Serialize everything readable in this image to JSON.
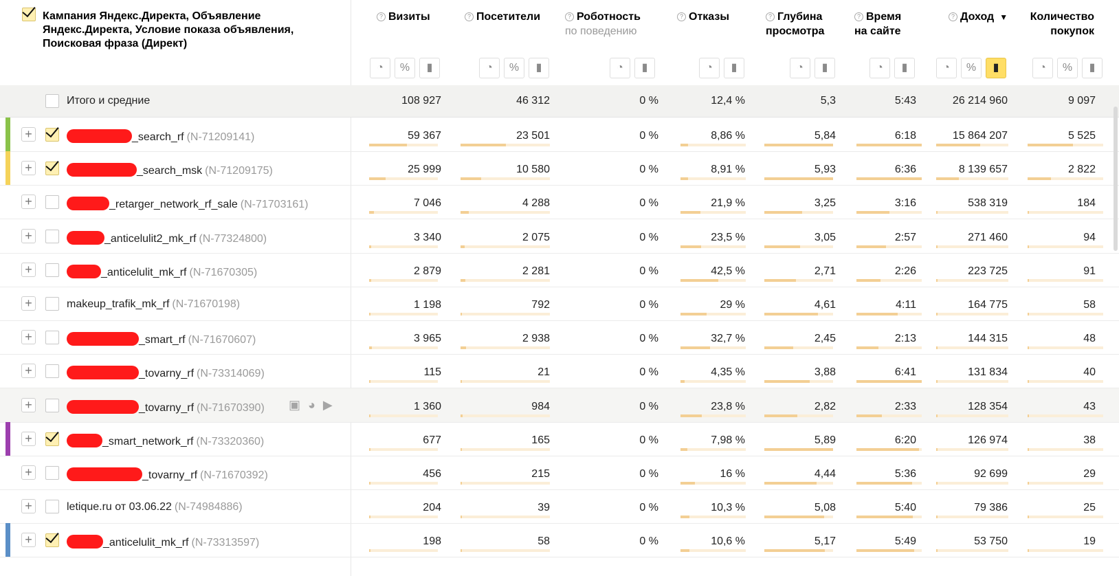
{
  "header": {
    "dimension_title": "Кампания Яндекс.Директа, Объявление Яндекс.Директа, Условие показа объявления, Поисковая фраза (Директ)",
    "metrics": [
      {
        "l1": "Визиты",
        "l2": "",
        "sub": ""
      },
      {
        "l1": "Посетители",
        "l2": "",
        "sub": ""
      },
      {
        "l1": "Роботность",
        "l2": "",
        "sub": "по поведению"
      },
      {
        "l1": "Отказы",
        "l2": "",
        "sub": ""
      },
      {
        "l1": "Глубина",
        "l2": "просмотра",
        "sub": ""
      },
      {
        "l1": "Время",
        "l2": "на сайте",
        "sub": ""
      },
      {
        "l1": "Доход",
        "l2": "",
        "sub": "",
        "sort": "▼"
      },
      {
        "l1": "Количество",
        "l2": "покупок",
        "sub": ""
      }
    ],
    "help_glyph": "?"
  },
  "icons": {
    "pie": "◔",
    "percent": "%",
    "bars": "▮",
    "plus": "+",
    "save": "▣",
    "chart": "◕",
    "play": "▶"
  },
  "colors": {
    "accent": "#ffde66",
    "bar_fill": "#f3cf94",
    "bar_track": "#fbeed8",
    "redaction": "#ff1a1a"
  },
  "total": {
    "label": "Итого и средние",
    "values": [
      "108 927",
      "46 312",
      "0 %",
      "12,4 %",
      "5,3",
      "5:43",
      "26 214 960",
      "9 097"
    ]
  },
  "rows": [
    {
      "label": "_search_rf",
      "code": "(N-71209141)",
      "checked": true,
      "stripe": "#8bc34a",
      "values": [
        "59 367",
        "23 501",
        "0 %",
        "8,86 %",
        "5,84",
        "6:18",
        "15 864 207",
        "5 525"
      ],
      "bars": [
        0.545,
        0.507,
        0,
        0.12,
        1,
        1,
        0.605,
        0.6
      ]
    },
    {
      "label": "_search_msk",
      "code": "(N-71209175)",
      "checked": true,
      "stripe": "#f5d35a",
      "values": [
        "25 999",
        "10 580",
        "0 %",
        "8,91 %",
        "5,93",
        "6:36",
        "8 139 657",
        "2 822"
      ],
      "bars": [
        0.24,
        0.23,
        0,
        0.12,
        1,
        1,
        0.31,
        0.31
      ]
    },
    {
      "label": "_retarger_network_rf_sale",
      "code": "(N-71703161)",
      "checked": false,
      "values": [
        "7 046",
        "4 288",
        "0 %",
        "21,9 %",
        "3,25",
        "3:16",
        "538 319",
        "184"
      ],
      "bars": [
        0.065,
        0.09,
        0,
        0.3,
        0.55,
        0.5,
        0.02,
        0.02
      ]
    },
    {
      "label": "_anticelulit2_mk_rf",
      "code": "(N-77324800)",
      "checked": false,
      "values": [
        "3 340",
        "2 075",
        "0 %",
        "23,5 %",
        "3,05",
        "2:57",
        "271 460",
        "94"
      ],
      "bars": [
        0.03,
        0.045,
        0,
        0.32,
        0.52,
        0.45,
        0.01,
        0.01
      ]
    },
    {
      "label": "_anticelulit_mk_rf",
      "code": "(N-71670305)",
      "checked": false,
      "values": [
        "2 879",
        "2 281",
        "0 %",
        "42,5 %",
        "2,71",
        "2:26",
        "223 725",
        "91"
      ],
      "bars": [
        0.026,
        0.05,
        0,
        0.58,
        0.46,
        0.37,
        0.01,
        0.01
      ]
    },
    {
      "label": "makeup_trafik_mk_rf",
      "code": "(N-71670198)",
      "checked": false,
      "plain": true,
      "values": [
        "1 198",
        "792",
        "0 %",
        "29 %",
        "4,61",
        "4:11",
        "164 775",
        "58"
      ],
      "bars": [
        0.011,
        0.017,
        0,
        0.4,
        0.78,
        0.63,
        0.006,
        0.006
      ]
    },
    {
      "label": "_smart_rf",
      "code": "(N-71670607)",
      "checked": false,
      "values": [
        "3 965",
        "2 938",
        "0 %",
        "32,7 %",
        "2,45",
        "2:13",
        "144 315",
        "48"
      ],
      "bars": [
        0.036,
        0.063,
        0,
        0.45,
        0.42,
        0.34,
        0.005,
        0.005
      ]
    },
    {
      "label": "_tovarny_rf",
      "code": "(N-73314069)",
      "checked": false,
      "values": [
        "115",
        "21",
        "0 %",
        "4,35 %",
        "3,88",
        "6:41",
        "131 834",
        "40"
      ],
      "bars": [
        0.001,
        0.001,
        0,
        0.06,
        0.66,
        1,
        0.005,
        0.004
      ]
    },
    {
      "label": "_tovarny_rf",
      "code": "(N-71670390)",
      "checked": false,
      "hover": true,
      "values": [
        "1 360",
        "984",
        "0 %",
        "23,8 %",
        "2,82",
        "2:33",
        "128 354",
        "43"
      ],
      "bars": [
        0.012,
        0.021,
        0,
        0.33,
        0.48,
        0.39,
        0.005,
        0.004
      ]
    },
    {
      "label": "_smart_network_rf",
      "code": "(N-73320360)",
      "checked": true,
      "stripe": "#9c3fae",
      "values": [
        "677",
        "165",
        "0 %",
        "7,98 %",
        "5,89",
        "6:20",
        "126 974",
        "38"
      ],
      "bars": [
        0.006,
        0.004,
        0,
        0.11,
        1,
        0.96,
        0.005,
        0.004
      ]
    },
    {
      "label": "_tovarny_rf",
      "code": "(N-71670392)",
      "checked": false,
      "values": [
        "456",
        "215",
        "0 %",
        "16 %",
        "4,44",
        "5:36",
        "92 699",
        "29"
      ],
      "bars": [
        0.004,
        0.005,
        0,
        0.22,
        0.76,
        0.85,
        0.003,
        0.003
      ]
    },
    {
      "label": "letique.ru от 03.06.22",
      "code": "(N-74984886)",
      "checked": false,
      "plain": true,
      "values": [
        "204",
        "39",
        "0 %",
        "10,3 %",
        "5,08",
        "5:40",
        "79 386",
        "25"
      ],
      "bars": [
        0.002,
        0.001,
        0,
        0.14,
        0.87,
        0.86,
        0.003,
        0.003
      ]
    },
    {
      "label": "_anticelulit_mk_rf",
      "code": "(N-73313597)",
      "checked": true,
      "stripe": "#5b8fc7",
      "values": [
        "198",
        "58",
        "0 %",
        "10,6 %",
        "5,17",
        "5:49",
        "53 750",
        "19"
      ],
      "bars": [
        0.002,
        0.001,
        0,
        0.14,
        0.88,
        0.88,
        0.002,
        0.002
      ]
    }
  ]
}
